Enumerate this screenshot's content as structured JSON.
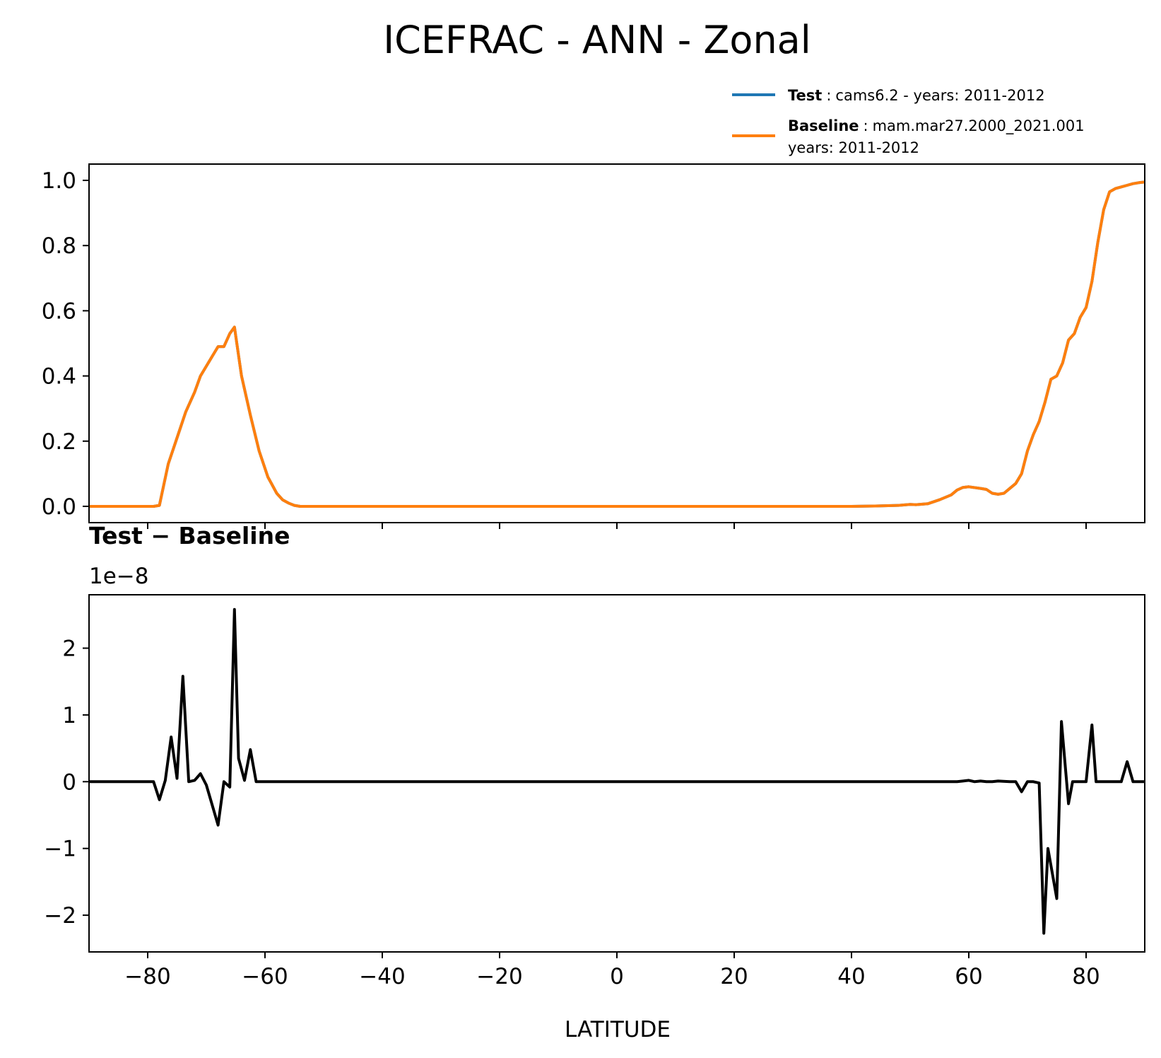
{
  "figure": {
    "title": "ICEFRAC - ANN - Zonal"
  },
  "legend": {
    "entries": [
      {
        "name": "Test",
        "sep": ":",
        "desc": "cams6.2 - years: 2011-2012",
        "desc2": "",
        "color": "#1f77b4"
      },
      {
        "name": "Baseline",
        "sep": ":",
        "desc": "mam.mar27.2000_2021.001",
        "desc2": "years: 2011-2012",
        "color": "#ff7f0e"
      }
    ]
  },
  "chart_data": [
    {
      "type": "line",
      "title": "",
      "xlabel": "",
      "ylabel": "",
      "xlim": [
        -90,
        90
      ],
      "ylim": [
        -0.05,
        1.05
      ],
      "xticks": [
        -80,
        -60,
        -40,
        -20,
        0,
        20,
        40,
        60,
        80
      ],
      "yticks": [
        0.0,
        0.2,
        0.4,
        0.6,
        0.8,
        1.0
      ],
      "ytick_labels": [
        "0.0",
        "0.2",
        "0.4",
        "0.6",
        "0.8",
        "1.0"
      ],
      "series": [
        {
          "name": "Test",
          "color": "#1f77b4",
          "x": [
            -90,
            -79,
            -78,
            -76.5,
            -75,
            -73.5,
            -72,
            -71,
            -69,
            -68,
            -67,
            -66,
            -65.2,
            -64,
            -62.5,
            -61,
            -59.5,
            -58,
            -57,
            -56,
            -55,
            -54,
            -52,
            -40,
            -20,
            0,
            20,
            40,
            44,
            48,
            50,
            51,
            53,
            55,
            57,
            58,
            59,
            60,
            62,
            63,
            64,
            65,
            66,
            67,
            68,
            69,
            70,
            71,
            72,
            73,
            74,
            75,
            76,
            77,
            78,
            79,
            80,
            81,
            82,
            83,
            84,
            85,
            86,
            87,
            88,
            89,
            90
          ],
          "y": [
            0,
            0,
            0.003,
            0.13,
            0.21,
            0.29,
            0.35,
            0.4,
            0.46,
            0.49,
            0.49,
            0.53,
            0.55,
            0.4,
            0.28,
            0.17,
            0.09,
            0.04,
            0.02,
            0.01,
            0.003,
            0,
            0,
            0,
            0,
            0,
            0,
            0,
            0.001,
            0.003,
            0.006,
            0.005,
            0.008,
            0.02,
            0.035,
            0.05,
            0.058,
            0.06,
            0.055,
            0.052,
            0.04,
            0.037,
            0.04,
            0.055,
            0.07,
            0.1,
            0.17,
            0.22,
            0.26,
            0.32,
            0.39,
            0.4,
            0.44,
            0.51,
            0.53,
            0.58,
            0.61,
            0.69,
            0.81,
            0.91,
            0.965,
            0.975,
            0.98,
            0.985,
            0.99,
            0.993,
            0.995
          ]
        },
        {
          "name": "Baseline",
          "color": "#ff7f0e",
          "x": [
            -90,
            -79,
            -78,
            -76.5,
            -75,
            -73.5,
            -72,
            -71,
            -69,
            -68,
            -67,
            -66,
            -65.2,
            -64,
            -62.5,
            -61,
            -59.5,
            -58,
            -57,
            -56,
            -55,
            -54,
            -52,
            -40,
            -20,
            0,
            20,
            40,
            44,
            48,
            50,
            51,
            53,
            55,
            57,
            58,
            59,
            60,
            62,
            63,
            64,
            65,
            66,
            67,
            68,
            69,
            70,
            71,
            72,
            73,
            74,
            75,
            76,
            77,
            78,
            79,
            80,
            81,
            82,
            83,
            84,
            85,
            86,
            87,
            88,
            89,
            90
          ],
          "y": [
            0,
            0,
            0.003,
            0.13,
            0.21,
            0.29,
            0.35,
            0.4,
            0.46,
            0.49,
            0.49,
            0.53,
            0.55,
            0.4,
            0.28,
            0.17,
            0.09,
            0.04,
            0.02,
            0.01,
            0.003,
            0,
            0,
            0,
            0,
            0,
            0,
            0,
            0.001,
            0.003,
            0.006,
            0.005,
            0.008,
            0.02,
            0.035,
            0.05,
            0.058,
            0.06,
            0.055,
            0.052,
            0.04,
            0.037,
            0.04,
            0.055,
            0.07,
            0.1,
            0.17,
            0.22,
            0.26,
            0.32,
            0.39,
            0.4,
            0.44,
            0.51,
            0.53,
            0.58,
            0.61,
            0.69,
            0.81,
            0.91,
            0.965,
            0.975,
            0.98,
            0.985,
            0.99,
            0.993,
            0.995
          ]
        }
      ]
    },
    {
      "type": "line",
      "title": "Test − Baseline",
      "offset_label": "1e−8",
      "xlabel": "LATITUDE",
      "ylabel": "",
      "xlim": [
        -90,
        90
      ],
      "ylim": [
        -2.55,
        2.8
      ],
      "xticks": [
        -80,
        -60,
        -40,
        -20,
        0,
        20,
        40,
        60,
        80
      ],
      "xtick_labels": [
        "−80",
        "−60",
        "−40",
        "−20",
        "0",
        "20",
        "40",
        "60",
        "80"
      ],
      "yticks": [
        -2,
        -1,
        0,
        1,
        2
      ],
      "ytick_labels": [
        "−2",
        "−1",
        "0",
        "1",
        "2"
      ],
      "series": [
        {
          "name": "Test − Baseline",
          "color": "#000000",
          "x": [
            -90,
            -79,
            -78,
            -77,
            -76,
            -75,
            -74,
            -73,
            -72,
            -71,
            -70,
            -69,
            -68,
            -67,
            -66,
            -65.2,
            -64.5,
            -63.5,
            -62.5,
            -61.5,
            -60,
            -55,
            -50,
            -40,
            -20,
            0,
            20,
            40,
            55,
            58,
            59,
            60,
            61,
            62,
            63,
            64,
            65,
            67,
            68,
            69,
            70,
            71,
            72,
            72.8,
            73.5,
            75,
            75.8,
            77,
            77.7,
            78.5,
            79,
            80,
            81,
            81.7,
            82.5,
            83,
            85,
            86,
            87,
            88,
            90
          ],
          "y": [
            0,
            0,
            -0.27,
            0.02,
            0.67,
            0.05,
            1.58,
            0,
            0.02,
            0.12,
            -0.05,
            -0.35,
            -0.65,
            0,
            -0.08,
            2.58,
            0.35,
            0.02,
            0.48,
            0,
            0,
            0,
            0,
            0,
            0,
            0,
            0,
            0,
            0,
            0,
            0.01,
            0.02,
            0,
            0.01,
            0,
            0,
            0.01,
            0,
            0,
            -0.15,
            0,
            0,
            -0.02,
            -2.27,
            -1,
            -1.75,
            0.9,
            -0.33,
            0,
            0,
            0,
            0,
            0.85,
            0,
            0,
            0,
            0,
            0,
            0.3,
            0,
            0
          ]
        }
      ]
    }
  ]
}
